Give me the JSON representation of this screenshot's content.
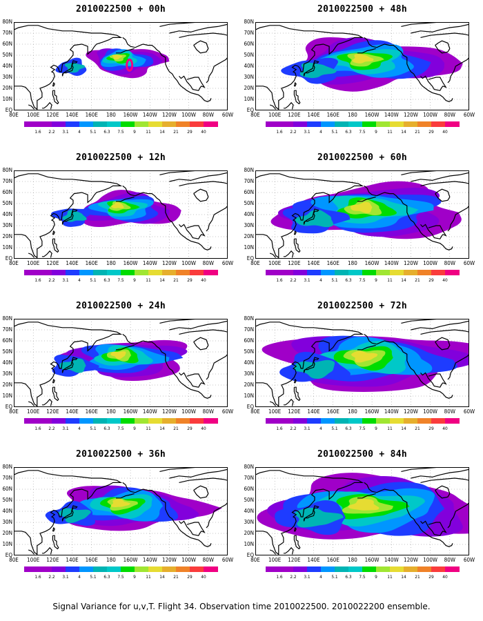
{
  "panels": [
    {
      "title": "2010022500 + 00h",
      "spread": 0.35,
      "peak": 0.85,
      "marker": true
    },
    {
      "title": "2010022500 + 48h",
      "spread": 1.25,
      "peak": 0.9,
      "marker": false
    },
    {
      "title": "2010022500 + 12h",
      "spread": 0.6,
      "peak": 0.8,
      "marker": false
    },
    {
      "title": "2010022500 + 60h",
      "spread": 1.45,
      "peak": 0.82,
      "marker": false
    },
    {
      "title": "2010022500 + 24h",
      "spread": 0.85,
      "peak": 0.78,
      "marker": false
    },
    {
      "title": "2010022500 + 72h",
      "spread": 1.65,
      "peak": 0.8,
      "marker": false
    },
    {
      "title": "2010022500 + 36h",
      "spread": 1.05,
      "peak": 0.82,
      "marker": false
    },
    {
      "title": "2010022500 + 84h",
      "spread": 1.9,
      "peak": 0.8,
      "marker": false
    }
  ],
  "lat_labels": [
    "80N",
    "70N",
    "60N",
    "50N",
    "40N",
    "30N",
    "20N",
    "10N",
    "EQ"
  ],
  "lon_labels": [
    "80E",
    "100E",
    "120E",
    "140E",
    "160E",
    "180",
    "160W",
    "140W",
    "120W",
    "100W",
    "80W",
    "60W"
  ],
  "colorbar": {
    "levels": [
      "1.6",
      "2.2",
      "3.1",
      "4",
      "5.1",
      "6.3",
      "7.5",
      "9",
      "11",
      "14",
      "21",
      "29",
      "40"
    ],
    "colors": [
      "#a000c8",
      "#8200dc",
      "#1e3cff",
      "#0096ff",
      "#00b4b4",
      "#00c8c8",
      "#00dc00",
      "#a0e632",
      "#e6dc32",
      "#e6af2d",
      "#f08228",
      "#fa3c3c",
      "#f00082"
    ]
  },
  "caption": "Signal Variance for u,v,T. Flight 34. Observation time 2010022500. 2010022200 ensemble."
}
